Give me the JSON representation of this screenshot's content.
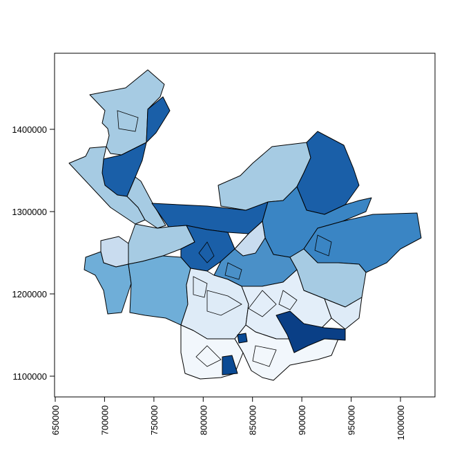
{
  "chart_data": {
    "type": "choropleth",
    "title": "",
    "xlabel": "",
    "ylabel": "",
    "x_ticks": [
      "650000",
      "700000",
      "750000",
      "800000",
      "850000",
      "900000",
      "950000",
      "1000000"
    ],
    "y_ticks": [
      "1100000",
      "1200000",
      "1300000",
      "1400000"
    ],
    "xlim": [
      640000,
      1035000
    ],
    "ylim": [
      1075000,
      1495000
    ],
    "palette": [
      "#f7fbff",
      "#deebf7",
      "#c6dbef",
      "#9ecae1",
      "#6baed6",
      "#4292c6",
      "#2171b5",
      "#08519c",
      "#08306b"
    ],
    "legend": "none",
    "grid": false
  }
}
